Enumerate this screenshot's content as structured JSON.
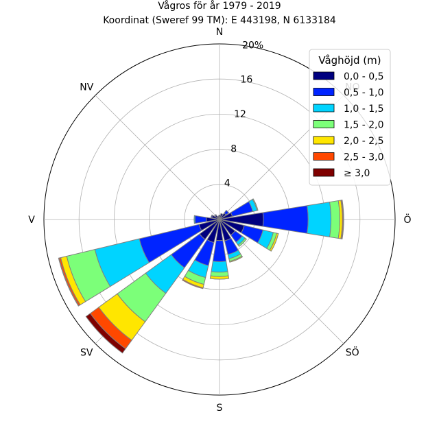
{
  "chart_data": {
    "type": "wind-rose",
    "title": "Vågros för år 1979 - 2019",
    "subtitle": "Koordinat (Sweref 99 TM): E 443198, N 6133184",
    "radial_max": 20,
    "radial_ticks": [
      "4",
      "8",
      "12",
      "16",
      "20%"
    ],
    "radial_tick_values": [
      4,
      8,
      12,
      16,
      20
    ],
    "directions": [
      {
        "label": "N",
        "angle": 0
      },
      {
        "label": "NO",
        "angle": 45
      },
      {
        "label": "Ö",
        "angle": 90
      },
      {
        "label": "SÖ",
        "angle": 135
      },
      {
        "label": "S",
        "angle": 180
      },
      {
        "label": "SV",
        "angle": 225
      },
      {
        "label": "V",
        "angle": 270
      },
      {
        "label": "NV",
        "angle": 315
      }
    ],
    "legend": {
      "title": "Våghöjd (m)",
      "placement": "top-right",
      "entries": [
        {
          "label": "0,0 - 0,5",
          "color": "#00007f"
        },
        {
          "label": "0,5 - 1,0",
          "color": "#0024ff"
        },
        {
          "label": "1,0 - 1,5",
          "color": "#00d4ff"
        },
        {
          "label": "1,5 - 2,0",
          "color": "#7cff79"
        },
        {
          "label": "2,0 - 2,5",
          "color": "#ffe600"
        },
        {
          "label": "2,5 - 3,0",
          "color": "#ff4800"
        },
        {
          "label": "≥ 3,0",
          "color": "#7f0000"
        }
      ]
    },
    "sectors": [
      {
        "angle": 0,
        "values": [
          0.5,
          0.0,
          0.0,
          0.0,
          0.0,
          0.0,
          0.0
        ]
      },
      {
        "angle": 22.5,
        "values": [
          0.7,
          0.0,
          0.0,
          0.0,
          0.0,
          0.0,
          0.0
        ]
      },
      {
        "angle": 45,
        "values": [
          0.9,
          0.4,
          0.0,
          0.0,
          0.0,
          0.0,
          0.0
        ]
      },
      {
        "angle": 67.5,
        "values": [
          1.5,
          2.4,
          0.5,
          0.1,
          0.0,
          0.0,
          0.0
        ]
      },
      {
        "angle": 90,
        "values": [
          5.0,
          5.1,
          2.6,
          1.0,
          0.3,
          0.1,
          0.05
        ]
      },
      {
        "angle": 112.5,
        "values": [
          2.9,
          2.2,
          1.2,
          0.4,
          0.2,
          0.0,
          0.0
        ]
      },
      {
        "angle": 135,
        "values": [
          2.2,
          1.0,
          0.4,
          0.2,
          0.0,
          0.0,
          0.0
        ]
      },
      {
        "angle": 157.5,
        "values": [
          2.5,
          1.6,
          0.5,
          0.3,
          0.1,
          0.0,
          0.0
        ]
      },
      {
        "angle": 180,
        "values": [
          2.4,
          2.4,
          1.2,
          0.5,
          0.3,
          0.0,
          0.0
        ]
      },
      {
        "angle": 202.5,
        "values": [
          2.7,
          2.7,
          1.4,
          0.8,
          0.4,
          0.1,
          0.0
        ]
      },
      {
        "angle": 225,
        "values": [
          2.8,
          4.0,
          3.6,
          4.0,
          2.6,
          1.2,
          0.6
        ]
      },
      {
        "angle": 247.5,
        "values": [
          2.4,
          7.0,
          5.2,
          3.3,
          0.7,
          0.2,
          0.05
        ]
      },
      {
        "angle": 270,
        "values": [
          1.5,
          1.3,
          0.1,
          0.0,
          0.0,
          0.0,
          0.0
        ]
      },
      {
        "angle": 292.5,
        "values": [
          0.9,
          0.1,
          0.0,
          0.0,
          0.0,
          0.0,
          0.0
        ]
      },
      {
        "angle": 315,
        "values": [
          0.6,
          0.1,
          0.0,
          0.0,
          0.0,
          0.0,
          0.0
        ]
      },
      {
        "angle": 337.5,
        "values": [
          0.4,
          0.0,
          0.0,
          0.0,
          0.0,
          0.0,
          0.0
        ]
      }
    ]
  }
}
